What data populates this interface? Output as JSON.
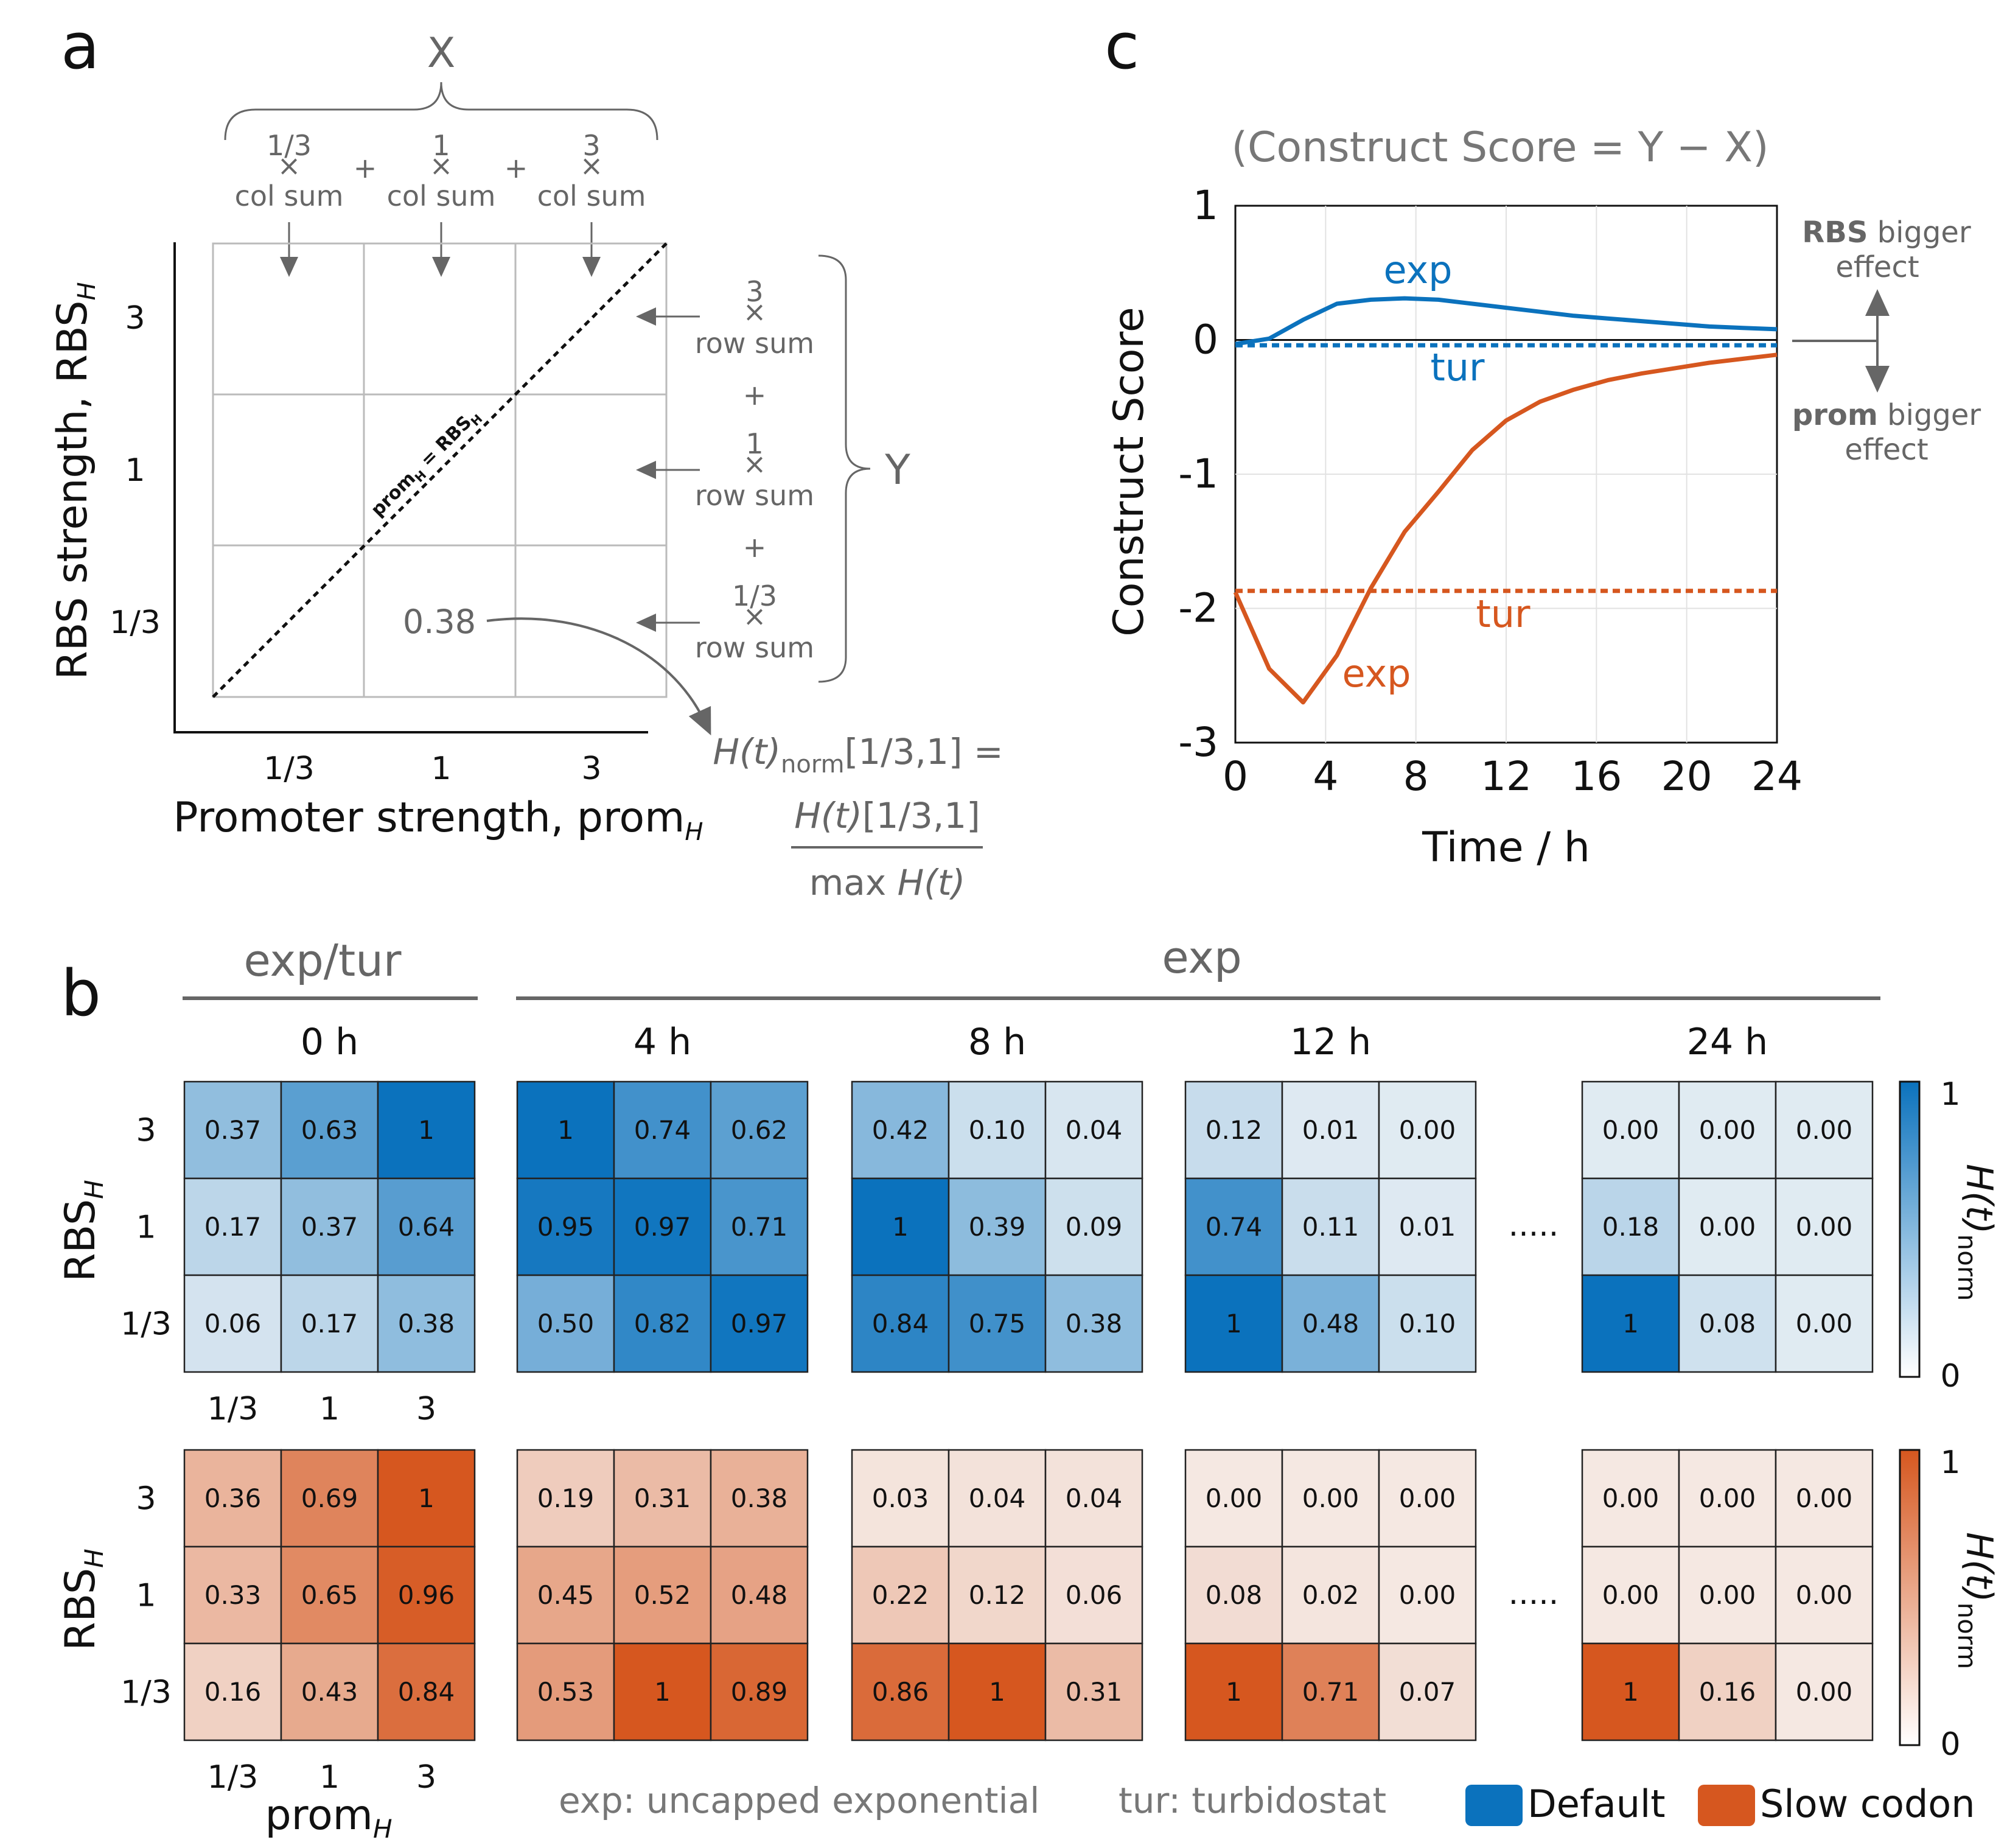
{
  "panels": {
    "a": "a",
    "b": "b",
    "c": "c"
  },
  "panel_a": {
    "x_brace_label": "X",
    "col_terms": [
      {
        "weight": "1/3",
        "times": "×",
        "text": "col sum"
      },
      {
        "weight": "1",
        "times": "×",
        "text": "col sum"
      },
      {
        "weight": "3",
        "times": "×",
        "text": "col sum"
      }
    ],
    "plus": "+",
    "row_terms": [
      {
        "weight": "3",
        "times": "×",
        "text": "row sum"
      },
      {
        "weight": "1",
        "times": "×",
        "text": "row sum"
      },
      {
        "weight": "1/3",
        "times": "×",
        "text": "row sum"
      }
    ],
    "y_brace_label": "Y",
    "y_axis_label": "RBS strength, RBS",
    "y_axis_sub": "H",
    "x_axis_label": "Promoter strength, prom",
    "x_axis_sub": "H",
    "y_ticks": [
      "3",
      "1",
      "1/3"
    ],
    "x_ticks": [
      "1/3",
      "1",
      "3"
    ],
    "diagonal_label": "prom",
    "diagonal_label_sub1": "H",
    "diagonal_label_eq": " = RBS",
    "diagonal_label_sub2": "H",
    "example_value": "0.38",
    "formula_lhs": "H(t)",
    "formula_lhs_sub": "norm",
    "formula_lhs_idx": "[1/3,1] =",
    "formula_num": "H(t)",
    "formula_num_idx": "[1/3,1]",
    "formula_den": "max ",
    "formula_den_h": "H(t)"
  },
  "panel_b": {
    "group_left": "exp/tur",
    "group_right": "exp",
    "times": [
      "0 h",
      "4 h",
      "8 h",
      "12 h",
      "24 h"
    ],
    "ellipsis": ".....",
    "row_labels": [
      "3",
      "1",
      "1/3"
    ],
    "col_labels": [
      "1/3",
      "1",
      "3"
    ],
    "y_label": "RBS",
    "y_label_sub": "H",
    "x_label": "prom",
    "x_label_sub": "H",
    "colorbar_label": "H(t)",
    "colorbar_sub": "norm",
    "colorbar_ticks": [
      "1",
      "0"
    ],
    "blue_color": "#0b72bd",
    "orange_color": "#d6571f",
    "legend_exp": "exp: uncapped exponential",
    "legend_tur": "tur: turbidostat",
    "legend_default": "Default",
    "legend_slow": "Slow codon"
  },
  "panel_c": {
    "title": "(Construct Score = Y − X)",
    "rbs_bold": "RBS",
    "rbs_rest": " bigger",
    "rbs_effect": "effect",
    "prom_bold": "prom",
    "prom_rest": " bigger",
    "prom_effect": "effect",
    "labels": {
      "blue_exp": "exp",
      "blue_tur": "tur",
      "orange_exp": "exp",
      "orange_tur": "tur"
    }
  },
  "chart_data": [
    {
      "type": "line",
      "title": "(Construct Score = Y − X)",
      "xlabel": "Time / h",
      "ylabel": "Construct Score",
      "xlim": [
        0,
        24
      ],
      "ylim": [
        -3,
        1
      ],
      "x_ticks": [
        "0",
        "4",
        "8",
        "12",
        "16",
        "20",
        "24"
      ],
      "y_ticks": [
        "1",
        "0",
        "-1",
        "-2",
        "-3"
      ],
      "grid": true,
      "series": [
        {
          "name": "Default exp",
          "color": "#0b72bd",
          "dash": false,
          "x": [
            0,
            1.5,
            3,
            4.5,
            6,
            7.5,
            9,
            10.5,
            12,
            13.5,
            15,
            16.5,
            18,
            19.5,
            21,
            22.5,
            24
          ],
          "y": [
            -0.03,
            0.01,
            0.15,
            0.27,
            0.3,
            0.31,
            0.3,
            0.27,
            0.24,
            0.21,
            0.18,
            0.16,
            0.14,
            0.12,
            0.1,
            0.09,
            0.08
          ]
        },
        {
          "name": "Default tur",
          "color": "#0b72bd",
          "dash": true,
          "x": [
            0,
            24
          ],
          "y": [
            -0.04,
            -0.04
          ]
        },
        {
          "name": "Slow codon exp",
          "color": "#d6571f",
          "dash": false,
          "x": [
            0,
            1.5,
            3,
            4.5,
            6,
            7.5,
            9,
            10.5,
            12,
            13.5,
            15,
            16.5,
            18,
            19.5,
            21,
            22.5,
            24
          ],
          "y": [
            -1.88,
            -2.45,
            -2.7,
            -2.35,
            -1.85,
            -1.43,
            -1.13,
            -0.82,
            -0.6,
            -0.46,
            -0.37,
            -0.3,
            -0.25,
            -0.21,
            -0.17,
            -0.14,
            -0.11
          ]
        },
        {
          "name": "Slow codon tur",
          "color": "#d6571f",
          "dash": true,
          "x": [
            0,
            24
          ],
          "y": [
            -1.87,
            -1.87
          ]
        }
      ]
    },
    {
      "type": "heatmap",
      "title": "Default H(t)norm",
      "rows": [
        "3",
        "1",
        "1/3"
      ],
      "cols": [
        "1/3",
        "1",
        "3"
      ],
      "times": [
        "0 h",
        "4 h",
        "8 h",
        "12 h",
        "24 h"
      ],
      "values": [
        [
          [
            0.37,
            0.63,
            1.0
          ],
          [
            0.17,
            0.37,
            0.64
          ],
          [
            0.06,
            0.17,
            0.38
          ]
        ],
        [
          [
            1.0,
            0.74,
            0.62
          ],
          [
            0.95,
            0.97,
            0.71
          ],
          [
            0.5,
            0.82,
            0.97
          ]
        ],
        [
          [
            0.42,
            0.1,
            0.04
          ],
          [
            1.0,
            0.39,
            0.09
          ],
          [
            0.84,
            0.75,
            0.38
          ]
        ],
        [
          [
            0.12,
            0.01,
            0.0
          ],
          [
            0.74,
            0.11,
            0.01
          ],
          [
            1.0,
            0.48,
            0.1
          ]
        ],
        [
          [
            0.0,
            0.0,
            0.0
          ],
          [
            0.18,
            0.0,
            0.0
          ],
          [
            1.0,
            0.08,
            0.0
          ]
        ]
      ],
      "labels": [
        [
          [
            "0.37",
            "0.63",
            "1"
          ],
          [
            "0.17",
            "0.37",
            "0.64"
          ],
          [
            "0.06",
            "0.17",
            "0.38"
          ]
        ],
        [
          [
            "1",
            "0.74",
            "0.62"
          ],
          [
            "0.95",
            "0.97",
            "0.71"
          ],
          [
            "0.50",
            "0.82",
            "0.97"
          ]
        ],
        [
          [
            "0.42",
            "0.10",
            "0.04"
          ],
          [
            "1",
            "0.39",
            "0.09"
          ],
          [
            "0.84",
            "0.75",
            "0.38"
          ]
        ],
        [
          [
            "0.12",
            "0.01",
            "0.00"
          ],
          [
            "0.74",
            "0.11",
            "0.01"
          ],
          [
            "1",
            "0.48",
            "0.10"
          ]
        ],
        [
          [
            "0.00",
            "0.00",
            "0.00"
          ],
          [
            "0.18",
            "0.00",
            "0.00"
          ],
          [
            "1",
            "0.08",
            "0.00"
          ]
        ]
      ]
    },
    {
      "type": "heatmap",
      "title": "Slow codon H(t)norm",
      "rows": [
        "3",
        "1",
        "1/3"
      ],
      "cols": [
        "1/3",
        "1",
        "3"
      ],
      "times": [
        "0 h",
        "4 h",
        "8 h",
        "12 h",
        "24 h"
      ],
      "values": [
        [
          [
            0.36,
            0.69,
            1.0
          ],
          [
            0.33,
            0.65,
            0.96
          ],
          [
            0.16,
            0.43,
            0.84
          ]
        ],
        [
          [
            0.19,
            0.31,
            0.38
          ],
          [
            0.45,
            0.52,
            0.48
          ],
          [
            0.53,
            1.0,
            0.89
          ]
        ],
        [
          [
            0.03,
            0.04,
            0.04
          ],
          [
            0.22,
            0.12,
            0.06
          ],
          [
            0.86,
            1.0,
            0.31
          ]
        ],
        [
          [
            0.0,
            0.0,
            0.0
          ],
          [
            0.08,
            0.02,
            0.0
          ],
          [
            1.0,
            0.71,
            0.07
          ]
        ],
        [
          [
            0.0,
            0.0,
            0.0
          ],
          [
            0.0,
            0.0,
            0.0
          ],
          [
            1.0,
            0.16,
            0.0
          ]
        ]
      ],
      "labels": [
        [
          [
            "0.36",
            "0.69",
            "1"
          ],
          [
            "0.33",
            "0.65",
            "0.96"
          ],
          [
            "0.16",
            "0.43",
            "0.84"
          ]
        ],
        [
          [
            "0.19",
            "0.31",
            "0.38"
          ],
          [
            "0.45",
            "0.52",
            "0.48"
          ],
          [
            "0.53",
            "1",
            "0.89"
          ]
        ],
        [
          [
            "0.03",
            "0.04",
            "0.04"
          ],
          [
            "0.22",
            "0.12",
            "0.06"
          ],
          [
            "0.86",
            "1",
            "0.31"
          ]
        ],
        [
          [
            "0.00",
            "0.00",
            "0.00"
          ],
          [
            "0.08",
            "0.02",
            "0.00"
          ],
          [
            "1",
            "0.71",
            "0.07"
          ]
        ],
        [
          [
            "0.00",
            "0.00",
            "0.00"
          ],
          [
            "0.00",
            "0.00",
            "0.00"
          ],
          [
            "1",
            "0.16",
            "0.00"
          ]
        ]
      ]
    }
  ]
}
